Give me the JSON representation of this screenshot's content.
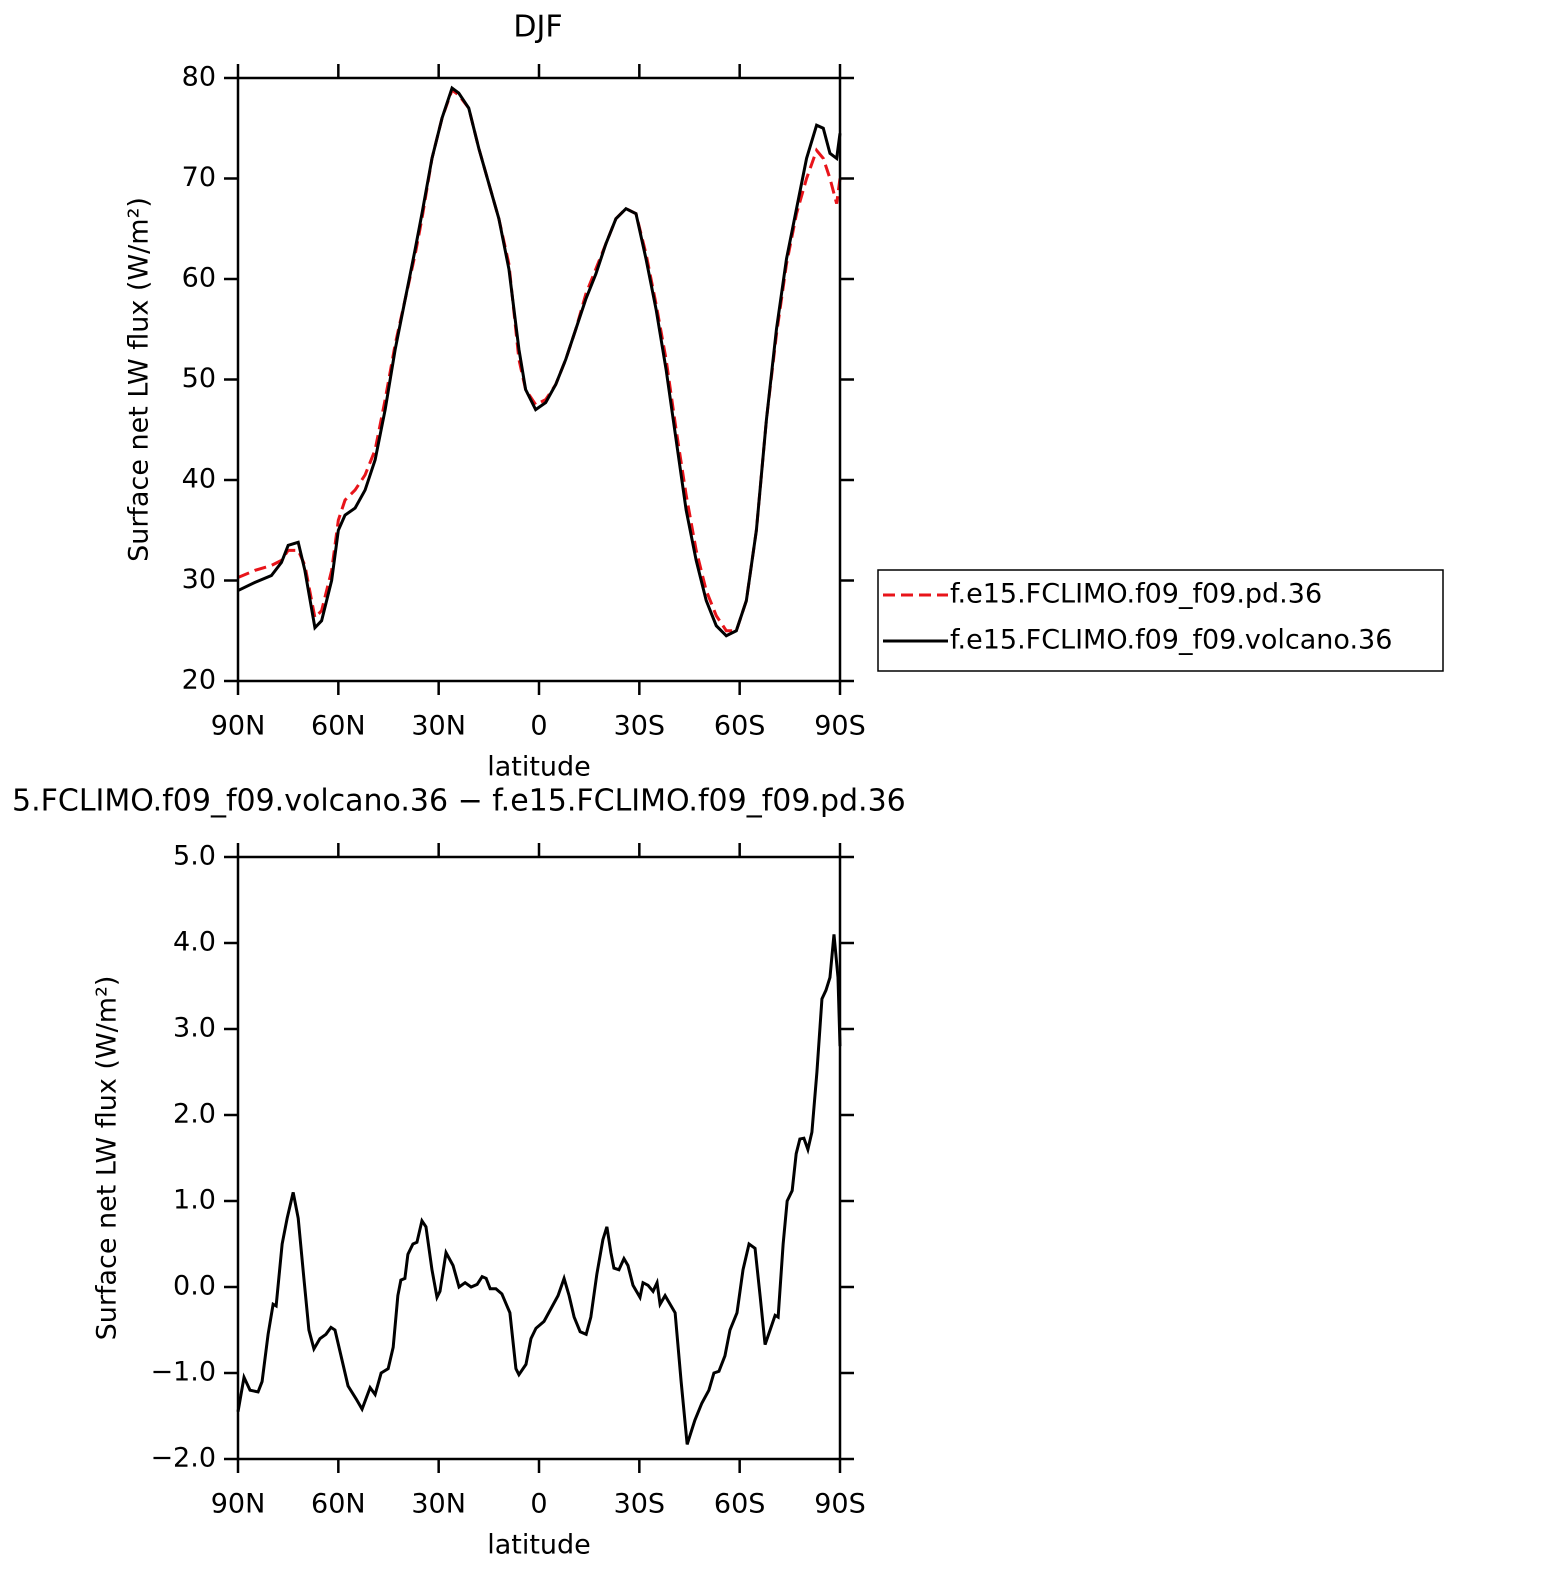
{
  "chart_data": [
    {
      "type": "line",
      "title": "DJF",
      "xlabel": "latitude",
      "ylabel": "Surface net LW flux (W/m²)",
      "xlim": [
        90,
        -90
      ],
      "ylim": [
        20,
        80
      ],
      "xticks": [
        {
          "value": 90,
          "label": "90N"
        },
        {
          "value": 60,
          "label": "60N"
        },
        {
          "value": 30,
          "label": "30N"
        },
        0,
        {
          "value": -30,
          "label": "30S"
        },
        {
          "value": -60,
          "label": "60S"
        },
        {
          "value": -90,
          "label": "90S"
        }
      ],
      "yticks": [
        20,
        30,
        40,
        50,
        60,
        70,
        80
      ],
      "legend": "right",
      "x": [
        90,
        85,
        80,
        77,
        75,
        72,
        70,
        67,
        65,
        62,
        60,
        58,
        55,
        52,
        49,
        46,
        43,
        40,
        37,
        35,
        32,
        29,
        26,
        24,
        21,
        18,
        15,
        12,
        9,
        6,
        4,
        1,
        -2,
        -5,
        -8,
        -11,
        -14,
        -17,
        -20,
        -23,
        -26,
        -29,
        -32,
        -35,
        -38,
        -41,
        -44,
        -47,
        -50,
        -53,
        -56,
        -59,
        -62,
        -65,
        -68,
        -71,
        -74,
        -77,
        -80,
        -83,
        -85,
        -87,
        -89,
        -90
      ],
      "series": [
        {
          "name": "f.e15.FCLIMO.f09_f09.pd.36",
          "color": "#e8141a",
          "line_style": "dashed",
          "values": [
            30.3,
            31,
            31.5,
            32,
            33,
            33,
            31.5,
            26.3,
            27,
            31,
            36,
            38,
            39,
            40.5,
            43,
            48,
            53.5,
            58,
            62.5,
            66,
            72,
            76,
            78.8,
            78.3,
            77,
            73,
            69.5,
            66,
            61.5,
            52,
            49,
            47.5,
            48,
            49.5,
            52,
            55,
            58.5,
            61,
            63.5,
            66,
            67,
            66.5,
            62.5,
            57.5,
            52,
            45,
            38.5,
            33,
            29,
            26.5,
            25,
            25,
            28,
            35,
            46,
            54.5,
            61.5,
            66.5,
            70,
            72.8,
            72,
            70,
            67.5,
            70
          ]
        },
        {
          "name": "f.e15.FCLIMO.f09_f09.volcano.36",
          "color": "#000000",
          "line_style": "solid",
          "values": [
            29,
            29.8,
            30.5,
            31.8,
            33.5,
            33.8,
            31,
            25.3,
            26,
            30,
            35,
            36.5,
            37.2,
            39,
            42,
            47,
            53,
            58,
            63,
            66.5,
            72,
            76,
            79,
            78.5,
            77,
            73,
            69.5,
            66,
            61,
            53,
            49,
            47,
            47.7,
            49.5,
            52,
            55,
            58,
            60.5,
            63.5,
            66,
            67,
            66.5,
            62,
            57,
            51,
            44,
            37,
            32,
            28,
            25.5,
            24.5,
            25,
            28,
            35,
            46,
            55,
            62,
            67,
            72,
            75.3,
            75,
            72.5,
            72,
            74.5
          ]
        }
      ]
    },
    {
      "type": "line",
      "title": "5.FCLIMO.f09_f09.volcano.36 − f.e15.FCLIMO.f09_f09.pd.36",
      "xlabel": "latitude",
      "ylabel": "Surface net LW flux (W/m²)",
      "xlim": [
        90,
        -90
      ],
      "ylim": [
        -2,
        5
      ],
      "xticks": [
        {
          "value": 90,
          "label": "90N"
        },
        {
          "value": 60,
          "label": "60N"
        },
        {
          "value": 30,
          "label": "30N"
        },
        0,
        {
          "value": -30,
          "label": "30S"
        },
        {
          "value": -60,
          "label": "60S"
        },
        {
          "value": -90,
          "label": "90S"
        }
      ],
      "yticks": [
        {
          "value": -2,
          "label": "−2.0"
        },
        {
          "value": -1,
          "label": "−1.0"
        },
        {
          "value": 0,
          "label": "0.0"
        },
        {
          "value": 1,
          "label": "1.0"
        },
        {
          "value": 2,
          "label": "2.0"
        },
        {
          "value": 3,
          "label": "3.0"
        },
        {
          "value": 4,
          "label": "4.0"
        },
        {
          "value": 5,
          "label": "5.0"
        }
      ],
      "color": "#000000",
      "x": [
        90,
        88.2,
        86.4,
        84,
        82.8,
        81,
        79.5,
        78.6,
        76.8,
        75.3,
        73.5,
        72,
        70.3,
        68.8,
        67.3,
        65.5,
        63.7,
        62.2,
        61,
        59.5,
        57.1,
        54.7,
        52.9,
        50.5,
        49,
        47.2,
        45.1,
        43.6,
        42.2,
        41.3,
        40.1,
        39.2,
        37.7,
        36.5,
        35,
        33.8,
        32,
        30.5,
        29.6,
        27.8,
        25.7,
        23.9,
        22.1,
        20.3,
        18.5,
        17,
        15.8,
        14.6,
        12.9,
        11.1,
        8.7,
        6.9,
        6,
        3.9,
        2.4,
        0.9,
        -1.5,
        -3.6,
        -5.7,
        -7.5,
        -9,
        -10.5,
        -12.3,
        -14.1,
        -15.5,
        -17.3,
        -19.1,
        -20.3,
        -21.5,
        -22.4,
        -23.9,
        -25.4,
        -26.6,
        -28.1,
        -30.2,
        -31.1,
        -32.6,
        -34.1,
        -35.3,
        -36.2,
        -37.7,
        -38.9,
        -40.7,
        -42.5,
        -44.3,
        -46.6,
        -48.7,
        -50.8,
        -52.3,
        -53.8,
        -55.6,
        -57.1,
        -59.2,
        -61,
        -62.8,
        -64.6,
        -66.1,
        -67.6,
        -69.1,
        -70.6,
        -71.5,
        -73,
        -74.2,
        -75.7,
        -76.9,
        -78,
        -79.2,
        -80.4,
        -81.6,
        -83.1,
        -84.6,
        -85.8,
        -87,
        -88.2,
        -89.4,
        -90
      ],
      "values": [
        -1.45,
        -1.05,
        -1.2,
        -1.22,
        -1.1,
        -0.55,
        -0.2,
        -0.22,
        0.5,
        0.8,
        1.1,
        0.8,
        0.1,
        -0.5,
        -0.72,
        -0.6,
        -0.55,
        -0.47,
        -0.5,
        -0.75,
        -1.15,
        -1.3,
        -1.42,
        -1.17,
        -1.25,
        -1.0,
        -0.95,
        -0.7,
        -0.1,
        0.08,
        0.1,
        0.38,
        0.5,
        0.52,
        0.77,
        0.7,
        0.2,
        -0.12,
        -0.05,
        0.4,
        0.25,
        0.0,
        0.05,
        0.0,
        0.03,
        0.12,
        0.1,
        -0.02,
        -0.02,
        -0.08,
        -0.3,
        -0.95,
        -1.02,
        -0.9,
        -0.6,
        -0.48,
        -0.4,
        -0.25,
        -0.1,
        0.1,
        -0.1,
        -0.35,
        -0.52,
        -0.55,
        -0.35,
        0.15,
        0.55,
        0.7,
        0.4,
        0.22,
        0.2,
        0.33,
        0.25,
        0.02,
        -0.12,
        0.05,
        0.02,
        -0.05,
        0.05,
        -0.2,
        -0.1,
        -0.18,
        -0.3,
        -1.1,
        -1.83,
        -1.55,
        -1.35,
        -1.2,
        -1.0,
        -0.98,
        -0.8,
        -0.5,
        -0.3,
        0.2,
        0.5,
        0.45,
        -0.1,
        -0.67,
        -0.5,
        -0.33,
        -0.35,
        0.5,
        1.0,
        1.12,
        1.55,
        1.72,
        1.73,
        1.6,
        1.8,
        2.5,
        3.35,
        3.45,
        3.6,
        4.1,
        3.6,
        2.8
      ]
    }
  ]
}
